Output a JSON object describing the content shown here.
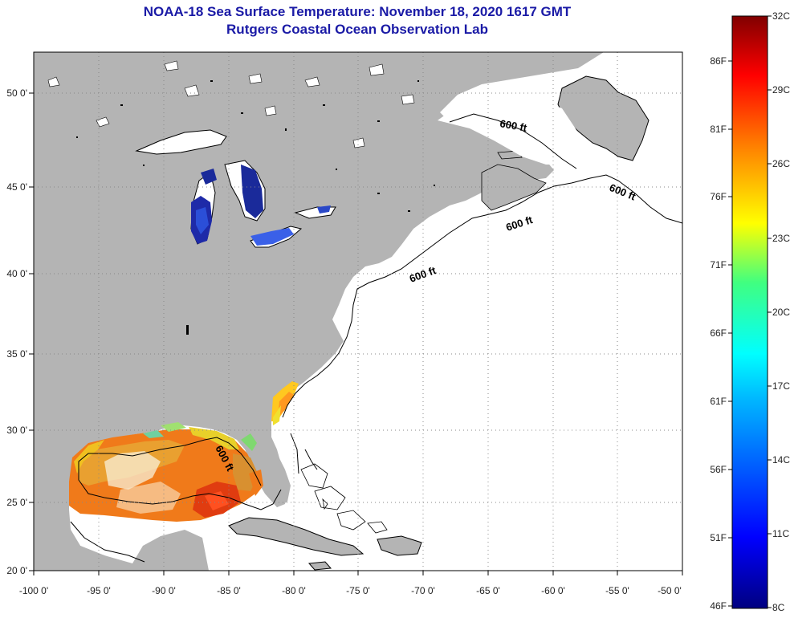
{
  "title": {
    "line1": "NOAA-18 Sea Surface Temperature:  November 18, 2020 1617 GMT",
    "line2": "Rutgers Coastal Ocean Observation Lab"
  },
  "axes": {
    "lon_labels": [
      "-100 0'",
      "-95 0'",
      "-90 0'",
      "-85 0'",
      "-80 0'",
      "-75 0'",
      "-70 0'",
      "-65 0'",
      "-60 0'",
      "-55 0'",
      "-50 0'"
    ],
    "lat_labels": [
      "50 0'",
      "45 0'",
      "40 0'",
      "35 0'",
      "30 0'",
      "25 0'",
      "20 0'"
    ]
  },
  "contour_labels": [
    "600 ft",
    "600 ft",
    "600 ft",
    "600 ft",
    "600 ft"
  ],
  "colorbar": {
    "celsius_labels": [
      "32C",
      "29C",
      "26C",
      "23C",
      "20C",
      "17C",
      "14C",
      "11C",
      "8C"
    ],
    "fahrenheit_labels": [
      "86F",
      "81F",
      "76F",
      "71F",
      "66F",
      "61F",
      "56F",
      "51F",
      "46F"
    ]
  },
  "colors": {
    "land": "#b4b4b4",
    "ocean": "#ffffff",
    "title": "#1a1aa6"
  }
}
